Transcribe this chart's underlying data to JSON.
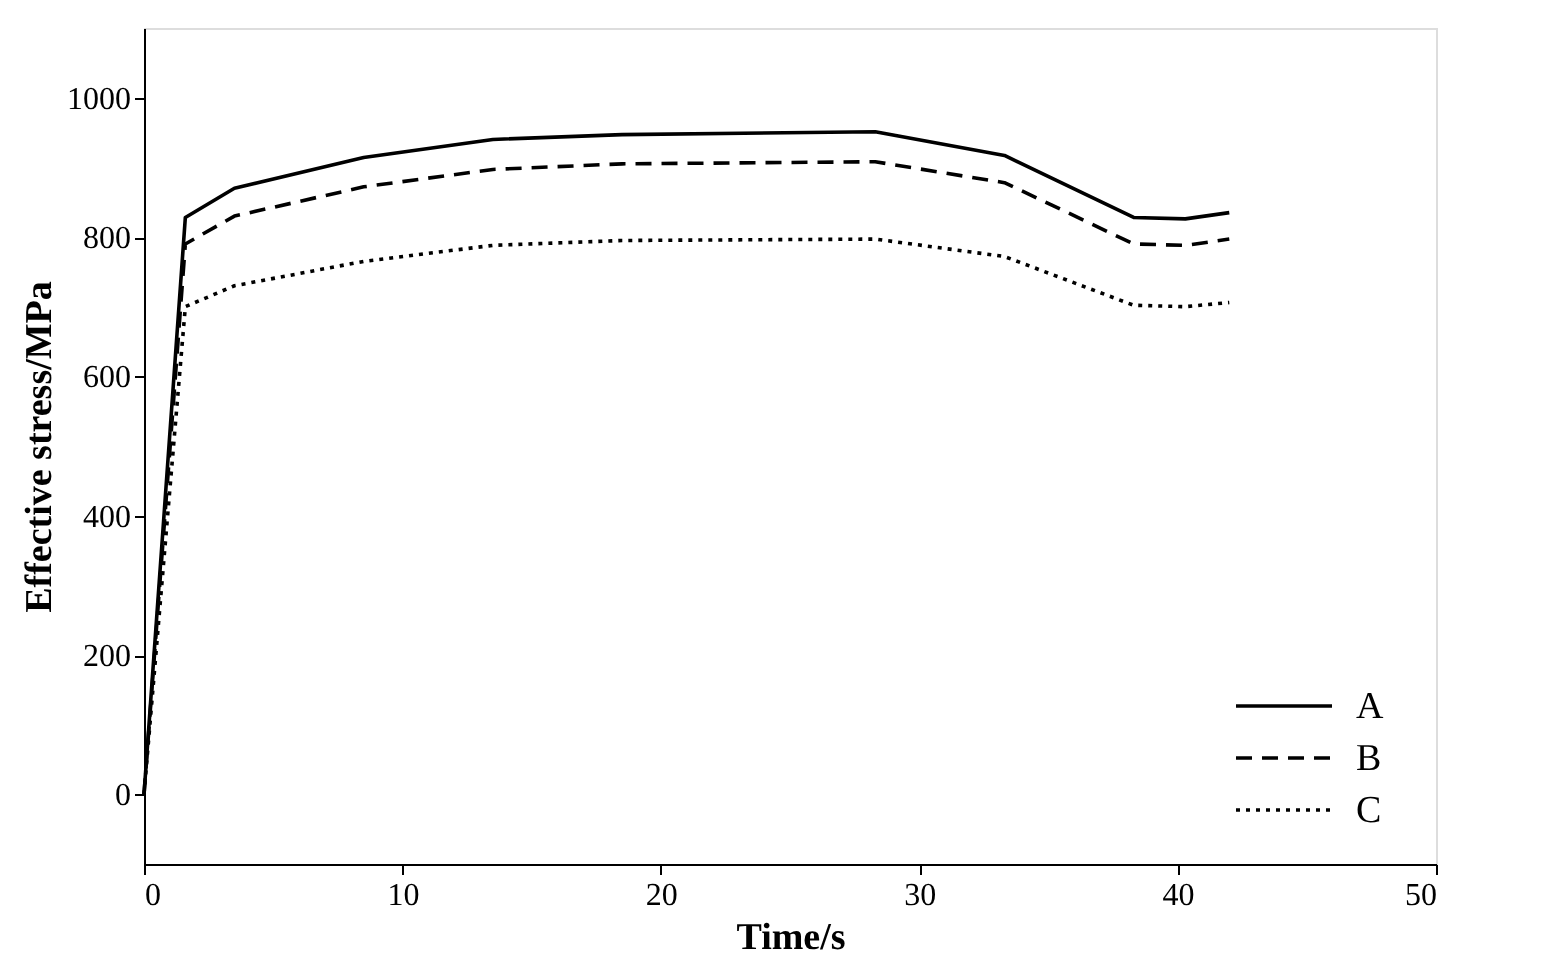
{
  "chart_data": {
    "type": "line",
    "xlabel": "Time/s",
    "ylabel": "Effective stress/MPa",
    "xlim": [
      0,
      50
    ],
    "xticks": [
      0,
      10,
      20,
      30,
      40,
      50
    ],
    "ylim": [
      -100,
      1100
    ],
    "yticks": [
      0,
      200,
      400,
      600,
      800,
      1000
    ],
    "grid": false,
    "legend": "bottom right",
    "marker": "none",
    "x": [
      0,
      1.6,
      3.5,
      8.5,
      13.5,
      18.5,
      28.3,
      33.3,
      38.3,
      40.3,
      42
    ],
    "series": [
      {
        "name": "A",
        "color": "#000000",
        "line_style": "solid",
        "values": [
          0,
          828,
          870,
          914,
          940,
          947,
          951,
          917,
          828,
          826,
          835
        ]
      },
      {
        "name": "B",
        "color": "#000000",
        "line_style": "dashed",
        "values": [
          0,
          790,
          830,
          872,
          897,
          905,
          908,
          878,
          790,
          788,
          797
        ]
      },
      {
        "name": "C",
        "color": "#000000",
        "line_style": "dotted",
        "values": [
          0,
          700,
          730,
          765,
          788,
          795,
          797,
          772,
          702,
          700,
          706
        ]
      }
    ]
  }
}
